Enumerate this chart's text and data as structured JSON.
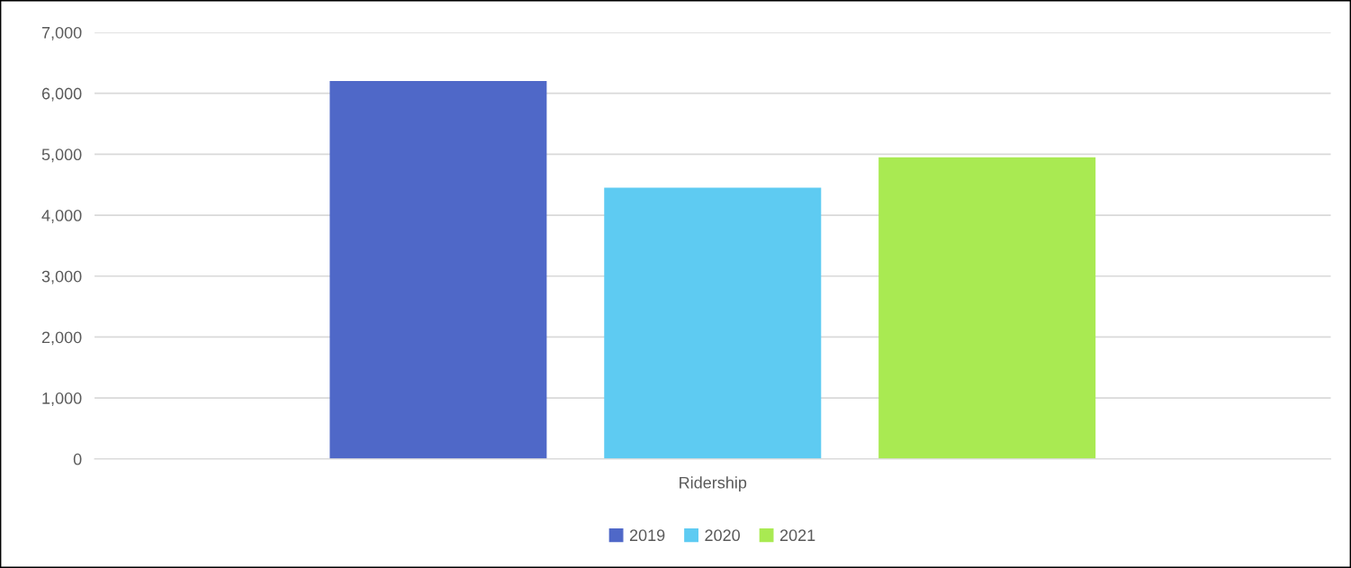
{
  "chart_data": {
    "type": "bar",
    "categories": [
      "Ridership"
    ],
    "series": [
      {
        "name": "2019",
        "color": "#4f68c8",
        "values": [
          6200
        ]
      },
      {
        "name": "2020",
        "color": "#5ecbf2",
        "values": [
          4450
        ]
      },
      {
        "name": "2021",
        "color": "#a9ea52",
        "values": [
          4950
        ]
      }
    ],
    "ylim": [
      0,
      7000
    ],
    "yticks": [
      {
        "value": 0,
        "label": "0"
      },
      {
        "value": 1000,
        "label": "1,000"
      },
      {
        "value": 2000,
        "label": "2,000"
      },
      {
        "value": 3000,
        "label": "3,000"
      },
      {
        "value": 4000,
        "label": "4,000"
      },
      {
        "value": 5000,
        "label": "5,000"
      },
      {
        "value": 6000,
        "label": "6,000"
      },
      {
        "value": 7000,
        "label": "7,000"
      }
    ],
    "grid": "y",
    "legend": "bottom"
  }
}
